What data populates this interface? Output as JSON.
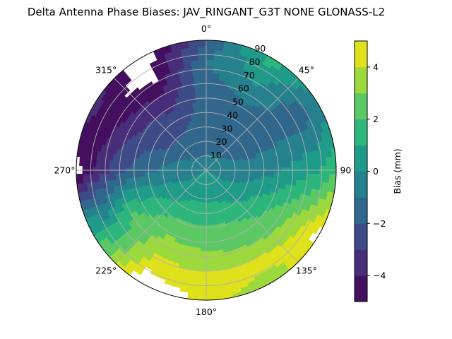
{
  "chart_data": {
    "type": "heatmap",
    "subtype": "polar-filled-contour",
    "title": "Delta Antenna Phase Biases: JAV_RINGANT_G3T NONE GLONASS-L2",
    "theta_direction": "clockwise",
    "theta_zero": "top",
    "theta_tick_labels": [
      "0°",
      "45°",
      "90°",
      "135°",
      "180°",
      "225°",
      "270°",
      "315°"
    ],
    "theta_ticks": [
      0,
      45,
      90,
      135,
      180,
      225,
      270,
      315
    ],
    "r_tick_labels": [
      "10",
      "20",
      "30",
      "40",
      "50",
      "60",
      "70",
      "80",
      "90"
    ],
    "r_ticks": [
      10,
      20,
      30,
      40,
      50,
      60,
      70,
      80,
      90
    ],
    "rlim": [
      0,
      90
    ],
    "grid": true,
    "colorbar": {
      "label": "Bias (mm)",
      "range": [
        -5,
        5
      ],
      "levels": [
        -5,
        -4,
        -3,
        -2,
        -1,
        0,
        1,
        2,
        3,
        4,
        5
      ],
      "tick_values": [
        -4,
        -2,
        0,
        2,
        4
      ],
      "tick_labels": [
        "−4",
        "−2",
        "0",
        "2",
        "4"
      ],
      "colormap": "viridis",
      "colors": [
        "#440f5f",
        "#482e7a",
        "#3e4b89",
        "#31678d",
        "#26818e",
        "#1f9b8a",
        "#2db67b",
        "#5bc864",
        "#9bd93c",
        "#dfe21a"
      ]
    },
    "grid_azimuth_deg": [
      0,
      30,
      60,
      90,
      120,
      150,
      180,
      210,
      240,
      270,
      300,
      330
    ],
    "grid_radius": [
      0,
      15,
      30,
      45,
      60,
      75,
      90
    ],
    "values_mm_by_azimuth": [
      [
        0,
        -1.5,
        -1.5,
        -1.5,
        -1.5,
        -1.0,
        -2.0
      ],
      [
        0,
        -1.2,
        -1.5,
        -1.5,
        -0.5,
        0.5,
        1.5
      ],
      [
        0,
        -1.0,
        -1.5,
        -1.5,
        -1.5,
        -1.7,
        -0.5
      ],
      [
        0,
        -0.7,
        -0.5,
        -0.3,
        0.3,
        0.8,
        1.8
      ],
      [
        0,
        0.0,
        0.5,
        1.5,
        2.5,
        3.8,
        5.6
      ],
      [
        0,
        0.5,
        1.3,
        2.3,
        3.0,
        4.6,
        3.0
      ],
      [
        0,
        0.5,
        1.5,
        2.5,
        3.2,
        4.3,
        4.8
      ],
      [
        0,
        0.3,
        1.5,
        2.5,
        3.5,
        4.6,
        6.0
      ],
      [
        0,
        0.0,
        0.5,
        1.5,
        2.0,
        0.8,
        1.5
      ],
      [
        0,
        -0.3,
        -0.8,
        -1.5,
        -2.2,
        -3.6,
        -5.5
      ],
      [
        0,
        -1.0,
        -2.0,
        -2.5,
        -3.5,
        -4.8,
        -3.5
      ],
      [
        0,
        -1.5,
        -2.0,
        -2.8,
        -4.0,
        -5.4,
        -5.6
      ]
    ]
  }
}
